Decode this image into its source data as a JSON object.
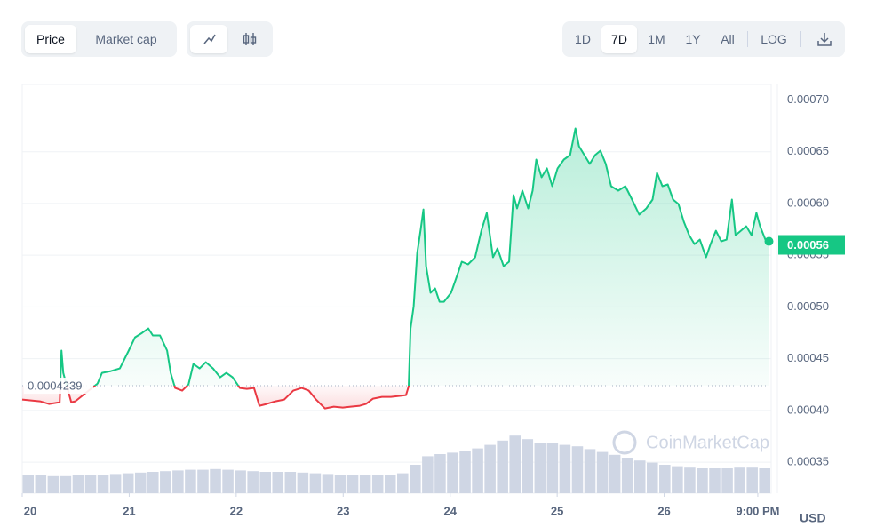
{
  "controls": {
    "metric": [
      "Price",
      "Market cap"
    ],
    "ranges": [
      "1D",
      "7D",
      "1M",
      "1Y",
      "All"
    ],
    "log": "LOG"
  },
  "chart_data": {
    "type": "line",
    "watermark": "CoinMarketCap",
    "currency": "USD",
    "baseline": 0.0004239,
    "current_price": 0.00056,
    "x": [
      0,
      4.0,
      6.0,
      8.4,
      8.8,
      9.2,
      11.0,
      11.9,
      16.9,
      17.9,
      19.9,
      21.9,
      23.9,
      25.3,
      26.9,
      28.3,
      29.3,
      30.9,
      32.5,
      33.3,
      34.3,
      35.9,
      37.3,
      38.4,
      39.8,
      41.2,
      42.8,
      44.4,
      45.8,
      47.2,
      48.8,
      50.4,
      52.0,
      53.2,
      54.8,
      56.8,
      58.8,
      60.8,
      62.7,
      64.3,
      65.9,
      67.9,
      69.9,
      71.9,
      73.7,
      75.7,
      77.1,
      78.7,
      80.7,
      82.7,
      84.7,
      86.1,
      86.7,
      87.1,
      87.8,
      88.6,
      89.4,
      90.0,
      90.6,
      91.6,
      92.6,
      93.6,
      94.6,
      96.2,
      97.6,
      98.6,
      100.0,
      101.6,
      103.0,
      104.2,
      105.6,
      106.6,
      108.0,
      109.2,
      110.2,
      111.0,
      112.2,
      113.5,
      114.5,
      115.3,
      116.5,
      117.7,
      118.9,
      120.1,
      121.5,
      122.9,
      124.1,
      124.9,
      126.1,
      127.3,
      128.5,
      129.7,
      130.9,
      132.1,
      133.7,
      135.3,
      136.8,
      138.4,
      140.0,
      141.4,
      142.4,
      143.6,
      144.8,
      146.0,
      147.2,
      148.4,
      149.6,
      150.8,
      152.0,
      153.4,
      154.4,
      155.6,
      156.8,
      158.0,
      159.2,
      160.0,
      161.2,
      162.4,
      163.6,
      164.7,
      165.5,
      166.7,
      167.5
    ],
    "series": [
      {
        "name": "Price",
        "color": "#16c784",
        "down_color": "#ea3943",
        "values": [
          0.0004105,
          0.0004088,
          0.0004062,
          0.0004079,
          0.0004578,
          0.0004363,
          0.0004079,
          0.0004088,
          0.000426,
          0.0004363,
          0.000438,
          0.0004406,
          0.0004578,
          0.0004706,
          0.0004749,
          0.0004792,
          0.0004724,
          0.0004724,
          0.0004578,
          0.0004363,
          0.0004217,
          0.0004191,
          0.0004251,
          0.0004449,
          0.0004406,
          0.0004466,
          0.0004406,
          0.000432,
          0.0004363,
          0.000432,
          0.0004217,
          0.0004208,
          0.0004217,
          0.0004045,
          0.0004062,
          0.0004088,
          0.0004105,
          0.0004191,
          0.0004217,
          0.0004191,
          0.0004105,
          0.0004019,
          0.0004036,
          0.0004028,
          0.0004036,
          0.0004045,
          0.0004062,
          0.0004114,
          0.0004131,
          0.0004131,
          0.000414,
          0.0004148,
          0.0004234,
          0.0004792,
          0.0005007,
          0.0005523,
          0.0005754,
          0.0005943,
          0.0005394,
          0.0005136,
          0.0005179,
          0.000505,
          0.000505,
          0.0005136,
          0.0005308,
          0.0005437,
          0.0005411,
          0.000548,
          0.0005737,
          0.0005909,
          0.000548,
          0.0005565,
          0.0005394,
          0.0005437,
          0.0006081,
          0.0005952,
          0.0006124,
          0.0005952,
          0.0006124,
          0.0006424,
          0.0006253,
          0.0006339,
          0.0006167,
          0.0006339,
          0.0006424,
          0.0006467,
          0.0006725,
          0.0006553,
          0.0006467,
          0.0006382,
          0.0006467,
          0.000651,
          0.0006382,
          0.0006167,
          0.0006124,
          0.0006167,
          0.0006038,
          0.0005892,
          0.0005952,
          0.0006038,
          0.0006296,
          0.0006167,
          0.0006184,
          0.0006038,
          0.0005995,
          0.0005823,
          0.0005694,
          0.0005608,
          0.0005651,
          0.000548,
          0.0005608,
          0.0005737,
          0.0005634,
          0.0005651,
          0.0006038,
          0.0005694,
          0.0005737,
          0.000578,
          0.0005694,
          0.0005909,
          0.000578,
          0.0005651,
          0.0005634
        ]
      }
    ],
    "volume": {
      "color": "#cfd6e4",
      "ylim": [
        0,
        100
      ],
      "values": [
        25,
        25,
        24,
        24,
        25,
        25,
        26,
        27,
        28,
        29,
        30,
        31,
        32,
        33,
        33,
        34,
        33,
        32,
        31,
        30,
        30,
        30,
        29,
        28,
        27,
        26,
        25,
        25,
        25,
        26,
        28,
        40,
        52,
        55,
        57,
        60,
        63,
        68,
        74,
        81,
        76,
        70,
        70,
        68,
        66,
        62,
        58,
        54,
        50,
        46,
        43,
        40,
        38,
        36,
        35,
        35,
        35,
        36,
        36,
        35
      ]
    },
    "xlim": [
      0,
      168
    ],
    "xticks": [
      {
        "value": 0,
        "label": "20"
      },
      {
        "value": 24,
        "label": "21"
      },
      {
        "value": 48,
        "label": "22"
      },
      {
        "value": 72,
        "label": "23"
      },
      {
        "value": 96,
        "label": "24"
      },
      {
        "value": 120,
        "label": "25"
      },
      {
        "value": 144,
        "label": "26"
      },
      {
        "value": 165,
        "label": "9:00 PM"
      }
    ],
    "ylim": [
      0.00032,
      0.000715
    ],
    "yticks": [
      {
        "value": 0.00035,
        "label": "0.00035"
      },
      {
        "value": 0.0004,
        "label": "0.00040"
      },
      0.00045,
      {
        "value": 0.0005,
        "label": "0.00050"
      },
      0.00055,
      {
        "value": 0.0006,
        "label": "0.00060"
      },
      0.00065,
      {
        "value": 0.0007,
        "label": "0.00070"
      }
    ],
    "grid": true
  }
}
